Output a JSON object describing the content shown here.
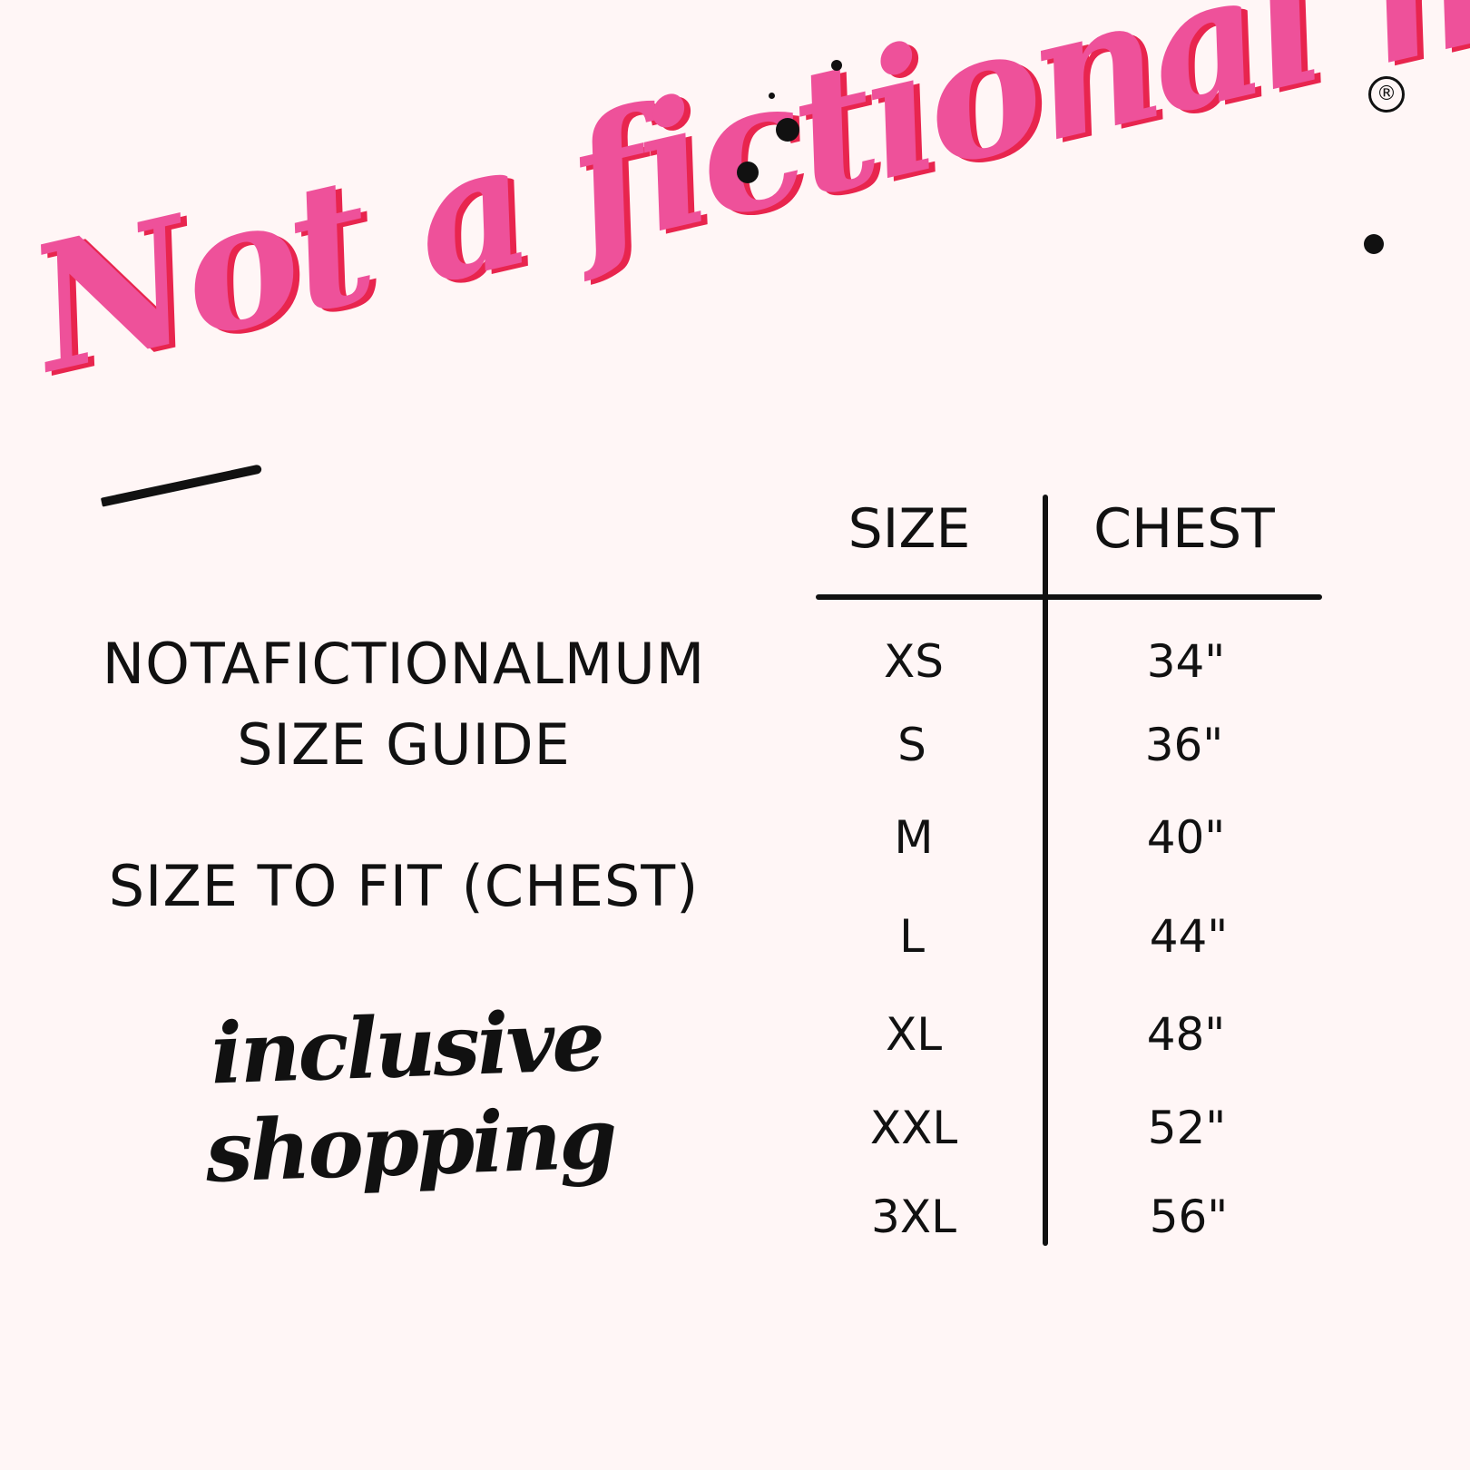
{
  "logo": {
    "text": "Not a fictional mum",
    "registered": "®",
    "colors": {
      "fill": "#ee519a",
      "shadow": "#e8254e"
    }
  },
  "title": {
    "line1": "NOTAFICTIONALMUM",
    "line2": "SIZE GUIDE",
    "subtitle": "SIZE TO FIT (CHEST)"
  },
  "tagline": "inclusive shopping",
  "table": {
    "headers": [
      "SIZE",
      "CHEST"
    ],
    "rows": [
      {
        "size": "XS",
        "chest": "34\""
      },
      {
        "size": "S",
        "chest": "36\""
      },
      {
        "size": "M",
        "chest": "40\""
      },
      {
        "size": "L",
        "chest": "44\""
      },
      {
        "size": "XL",
        "chest": "48\""
      },
      {
        "size": "XXL",
        "chest": "52\""
      },
      {
        "size": "3XL",
        "chest": "56\""
      }
    ]
  }
}
